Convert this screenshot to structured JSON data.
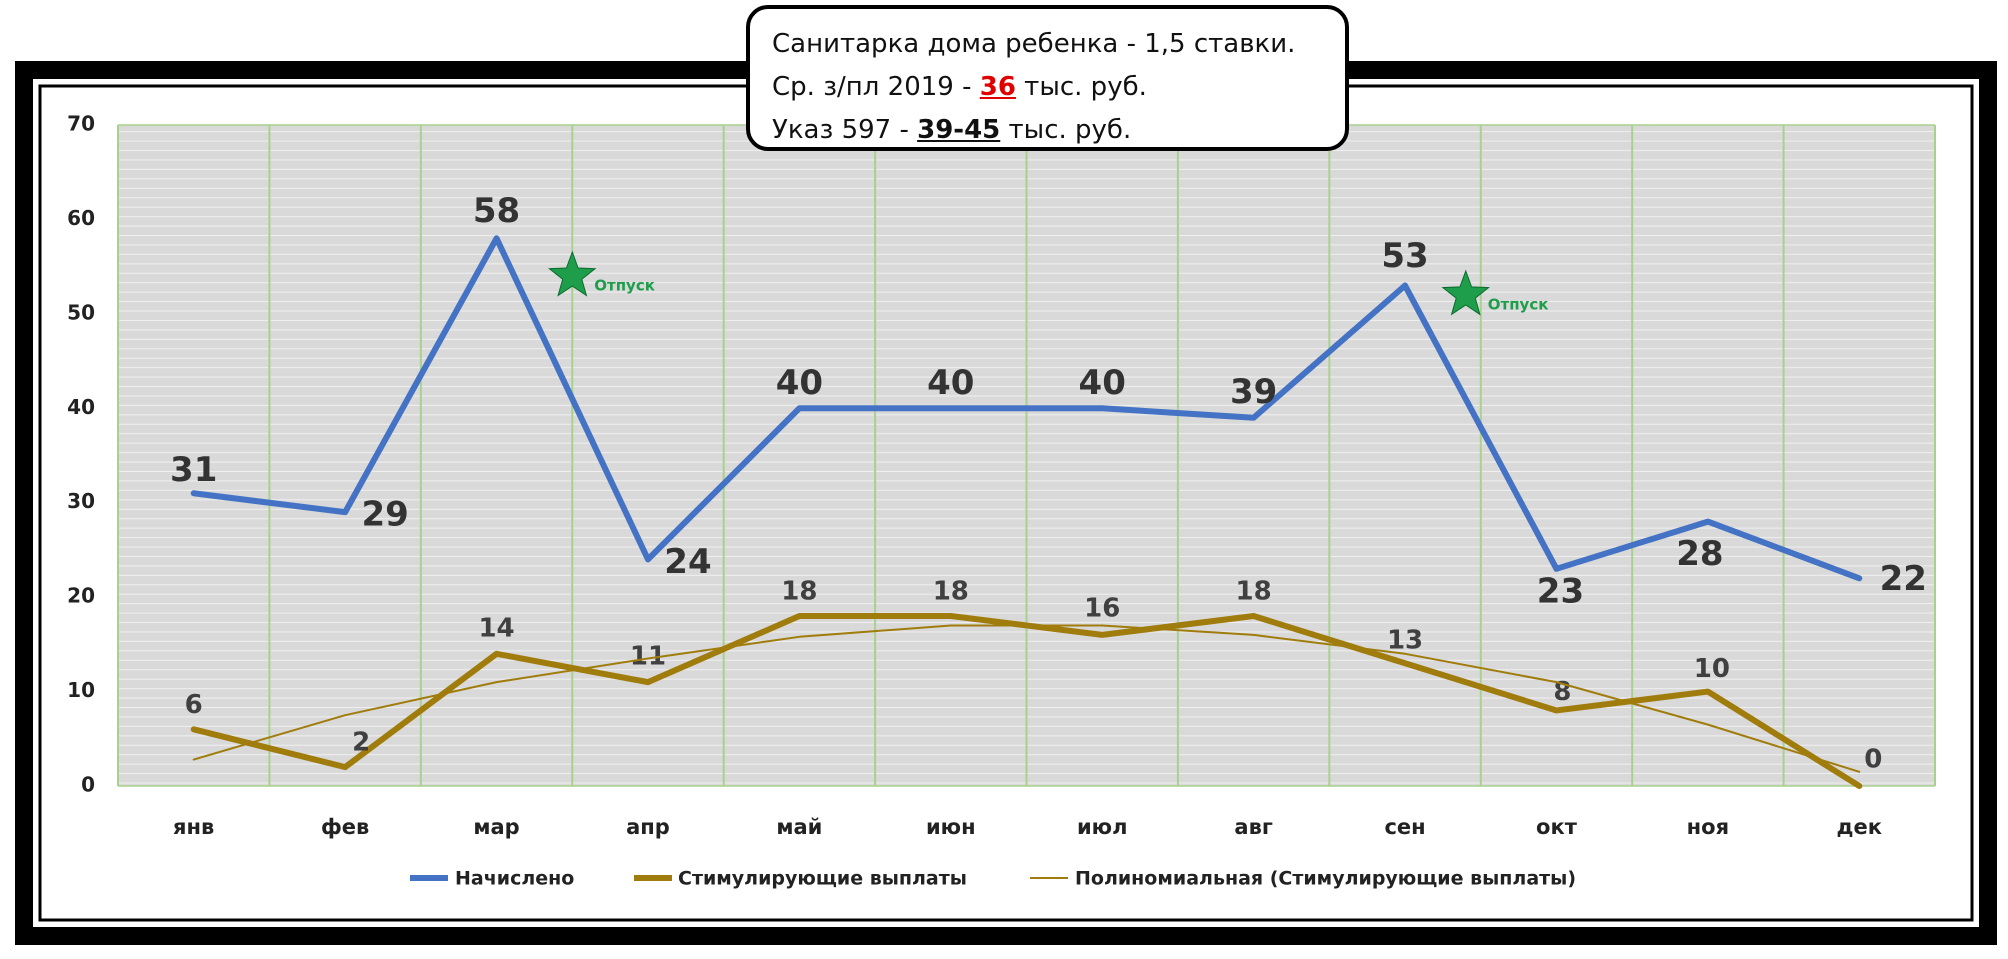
{
  "chart_data": {
    "type": "line",
    "categories": [
      "янв",
      "фев",
      "мар",
      "апр",
      "май",
      "июн",
      "июл",
      "авг",
      "сен",
      "окт",
      "ноя",
      "дек"
    ],
    "series": [
      {
        "name": "Начислено",
        "color": "#4472c4",
        "values": [
          31,
          29,
          58,
          24,
          40,
          40,
          40,
          39,
          53,
          23,
          28,
          22
        ],
        "data_labels": true
      },
      {
        "name": "Стимулирующие выплаты",
        "color": "#a07c0c",
        "values": [
          6,
          2,
          14,
          11,
          18,
          18,
          16,
          18,
          13,
          8,
          10,
          0
        ],
        "data_labels": true
      },
      {
        "name": "Полиномиальная (Стимулирующие выплаты)",
        "color": "#a07c0c",
        "values": [
          2.8,
          7.5,
          11,
          13.5,
          15.8,
          17,
          17,
          16,
          14,
          11,
          6.5,
          1.5
        ],
        "trendline": true
      }
    ],
    "ylim": [
      0,
      70
    ],
    "yticks": [
      0,
      10,
      20,
      30,
      40,
      50,
      60,
      70
    ],
    "grid": true,
    "legend": "bottom",
    "markers": [
      {
        "text": "Отпуск",
        "y": 54,
        "color": "#1e9e4a"
      },
      {
        "text": "Отпуск",
        "y": 52,
        "color": "#1e9e4a"
      }
    ],
    "annotation": {
      "line1": "Санитарка дома ребенка - 1,5 ставки.",
      "line2": [
        "Ср. з/пл 2019 - ",
        "36",
        " тыс. руб."
      ],
      "line3": [
        "Указ 597 - ",
        "39-45",
        " тыс. руб."
      ]
    }
  }
}
